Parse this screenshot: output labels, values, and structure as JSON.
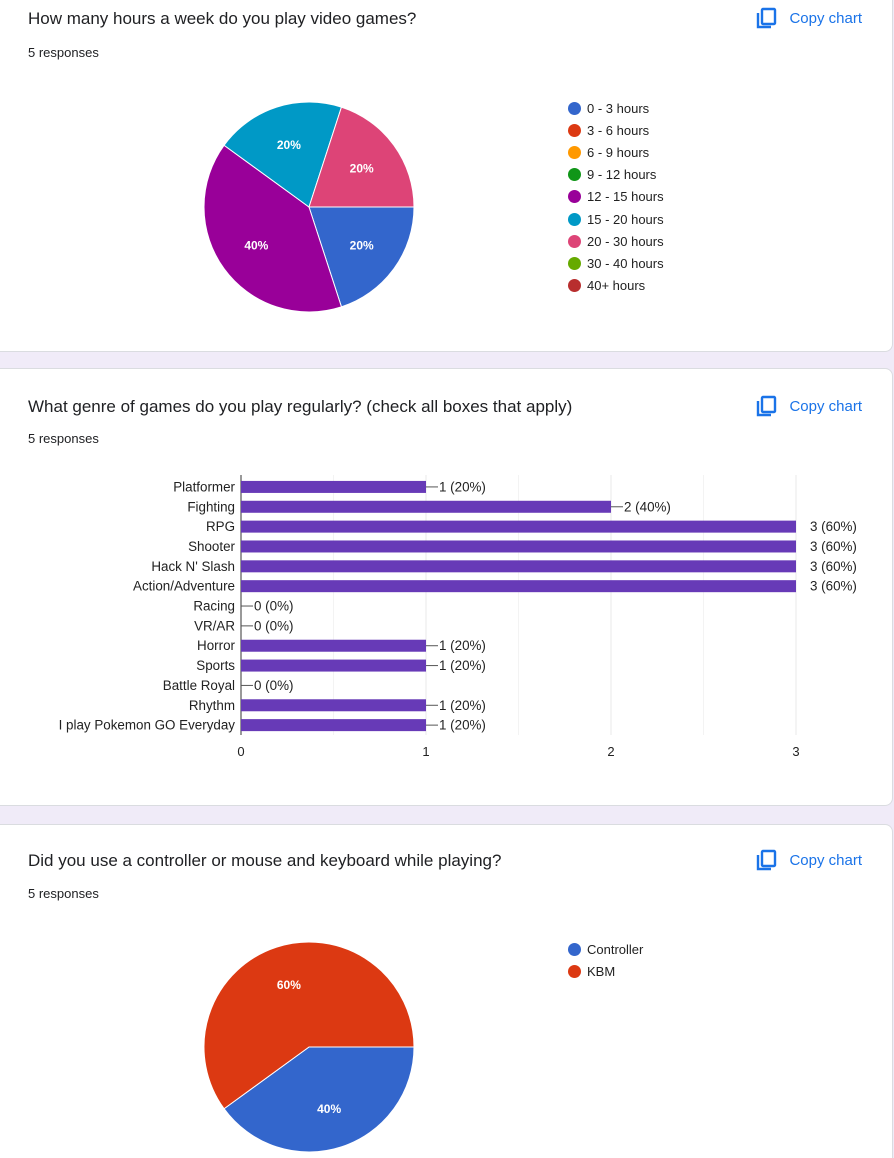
{
  "copy_label": "Copy chart",
  "cards": [
    {
      "title": "How many hours a week do you play video games?",
      "responses": "5 responses",
      "chart_data": {
        "type": "pie",
        "categories": [
          "0 - 3 hours",
          "3 - 6 hours",
          "6 - 9 hours",
          "9 - 12 hours",
          "12 - 15 hours",
          "15 - 20 hours",
          "20 - 30 hours",
          "30 - 40 hours",
          "40+ hours"
        ],
        "values": [
          1,
          0,
          0,
          0,
          2,
          1,
          1,
          0,
          0
        ],
        "colors": [
          "#3366cc",
          "#dc3912",
          "#ff9900",
          "#109618",
          "#990099",
          "#0099c6",
          "#dd4477",
          "#66aa00",
          "#b82e2e"
        ],
        "slice_labels": [
          "20%",
          "",
          "",
          "",
          "40%",
          "20%",
          "20%",
          "",
          ""
        ],
        "legend_position": "right"
      }
    },
    {
      "title": "What genre of games do you play regularly? (check all boxes that apply)",
      "responses": "5 responses",
      "chart_data": {
        "type": "bar",
        "orientation": "horizontal",
        "categories": [
          "Platformer",
          "Fighting",
          "RPG",
          "Shooter",
          "Hack N' Slash",
          "Action/Adventure",
          "Racing",
          "VR/AR",
          "Horror",
          "Sports",
          "Battle Royal",
          "Rhythm",
          "I play Pokemon GO Everyday"
        ],
        "values": [
          1,
          2,
          3,
          3,
          3,
          3,
          0,
          0,
          1,
          1,
          0,
          1,
          1
        ],
        "data_labels": [
          "1 (20%)",
          "2 (40%)",
          "3 (60%)",
          "3 (60%)",
          "3 (60%)",
          "3 (60%)",
          "0 (0%)",
          "0 (0%)",
          "1 (20%)",
          "1 (20%)",
          "0 (0%)",
          "1 (20%)",
          "1 (20%)"
        ],
        "xticks": [
          "0",
          "1",
          "2",
          "3"
        ],
        "xlim": [
          0,
          3
        ],
        "color": "#673ab7",
        "grid": true
      }
    },
    {
      "title": "Did you use a controller or mouse and keyboard while playing?",
      "responses": "5 responses",
      "chart_data": {
        "type": "pie",
        "categories": [
          "Controller",
          "KBM"
        ],
        "values": [
          2,
          3
        ],
        "colors": [
          "#3366cc",
          "#dc3912"
        ],
        "slice_labels": [
          "40%",
          "60%"
        ],
        "legend_position": "right"
      }
    }
  ]
}
